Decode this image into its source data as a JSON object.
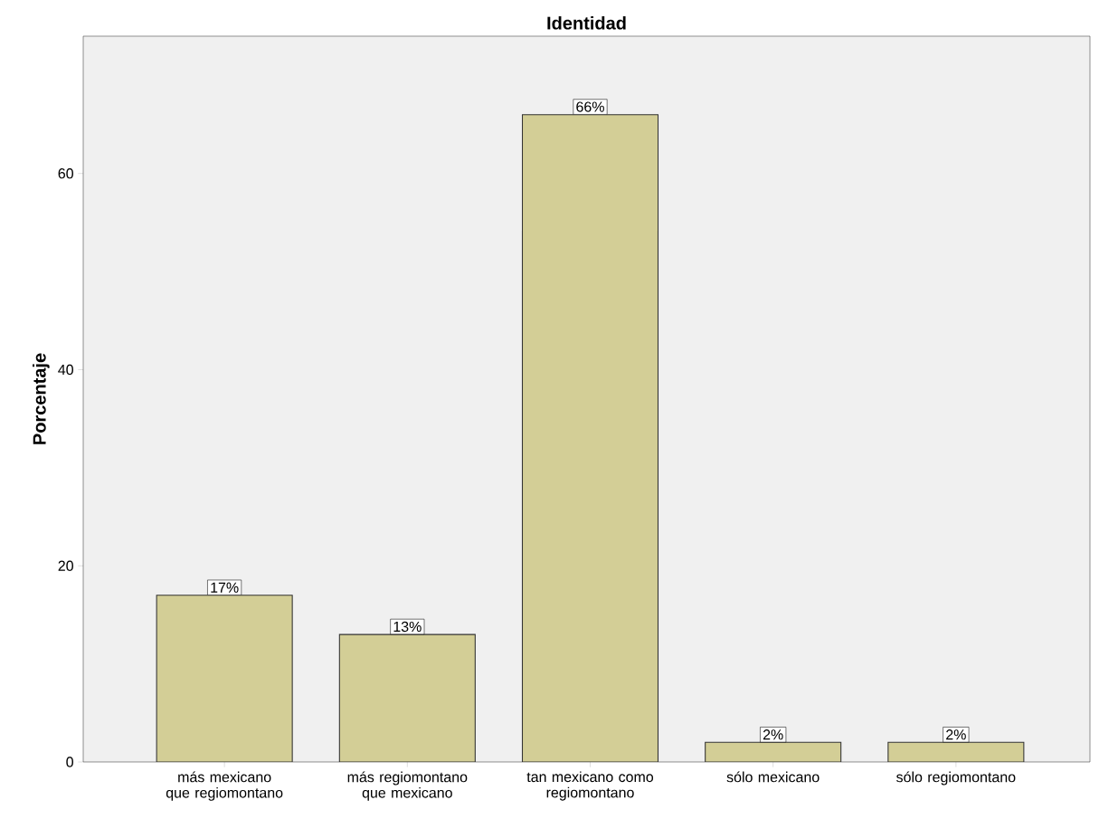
{
  "chart_data": {
    "type": "bar",
    "title": "Identidad",
    "ylabel": "Porcentaje",
    "categories": [
      "más mexicano que regiomontano",
      "más regiomontano que mexicano",
      "tan mexicano como regiomontano",
      "sólo mexicano",
      "sólo regiomontano"
    ],
    "values": [
      17,
      13,
      66,
      2,
      2
    ],
    "value_labels": [
      "17%",
      "13%",
      "66%",
      "2%",
      "2%"
    ],
    "color": "#d3ce96",
    "ylim": [
      0,
      74
    ],
    "yticks": [
      0,
      20,
      40,
      60
    ],
    "grid": false
  }
}
